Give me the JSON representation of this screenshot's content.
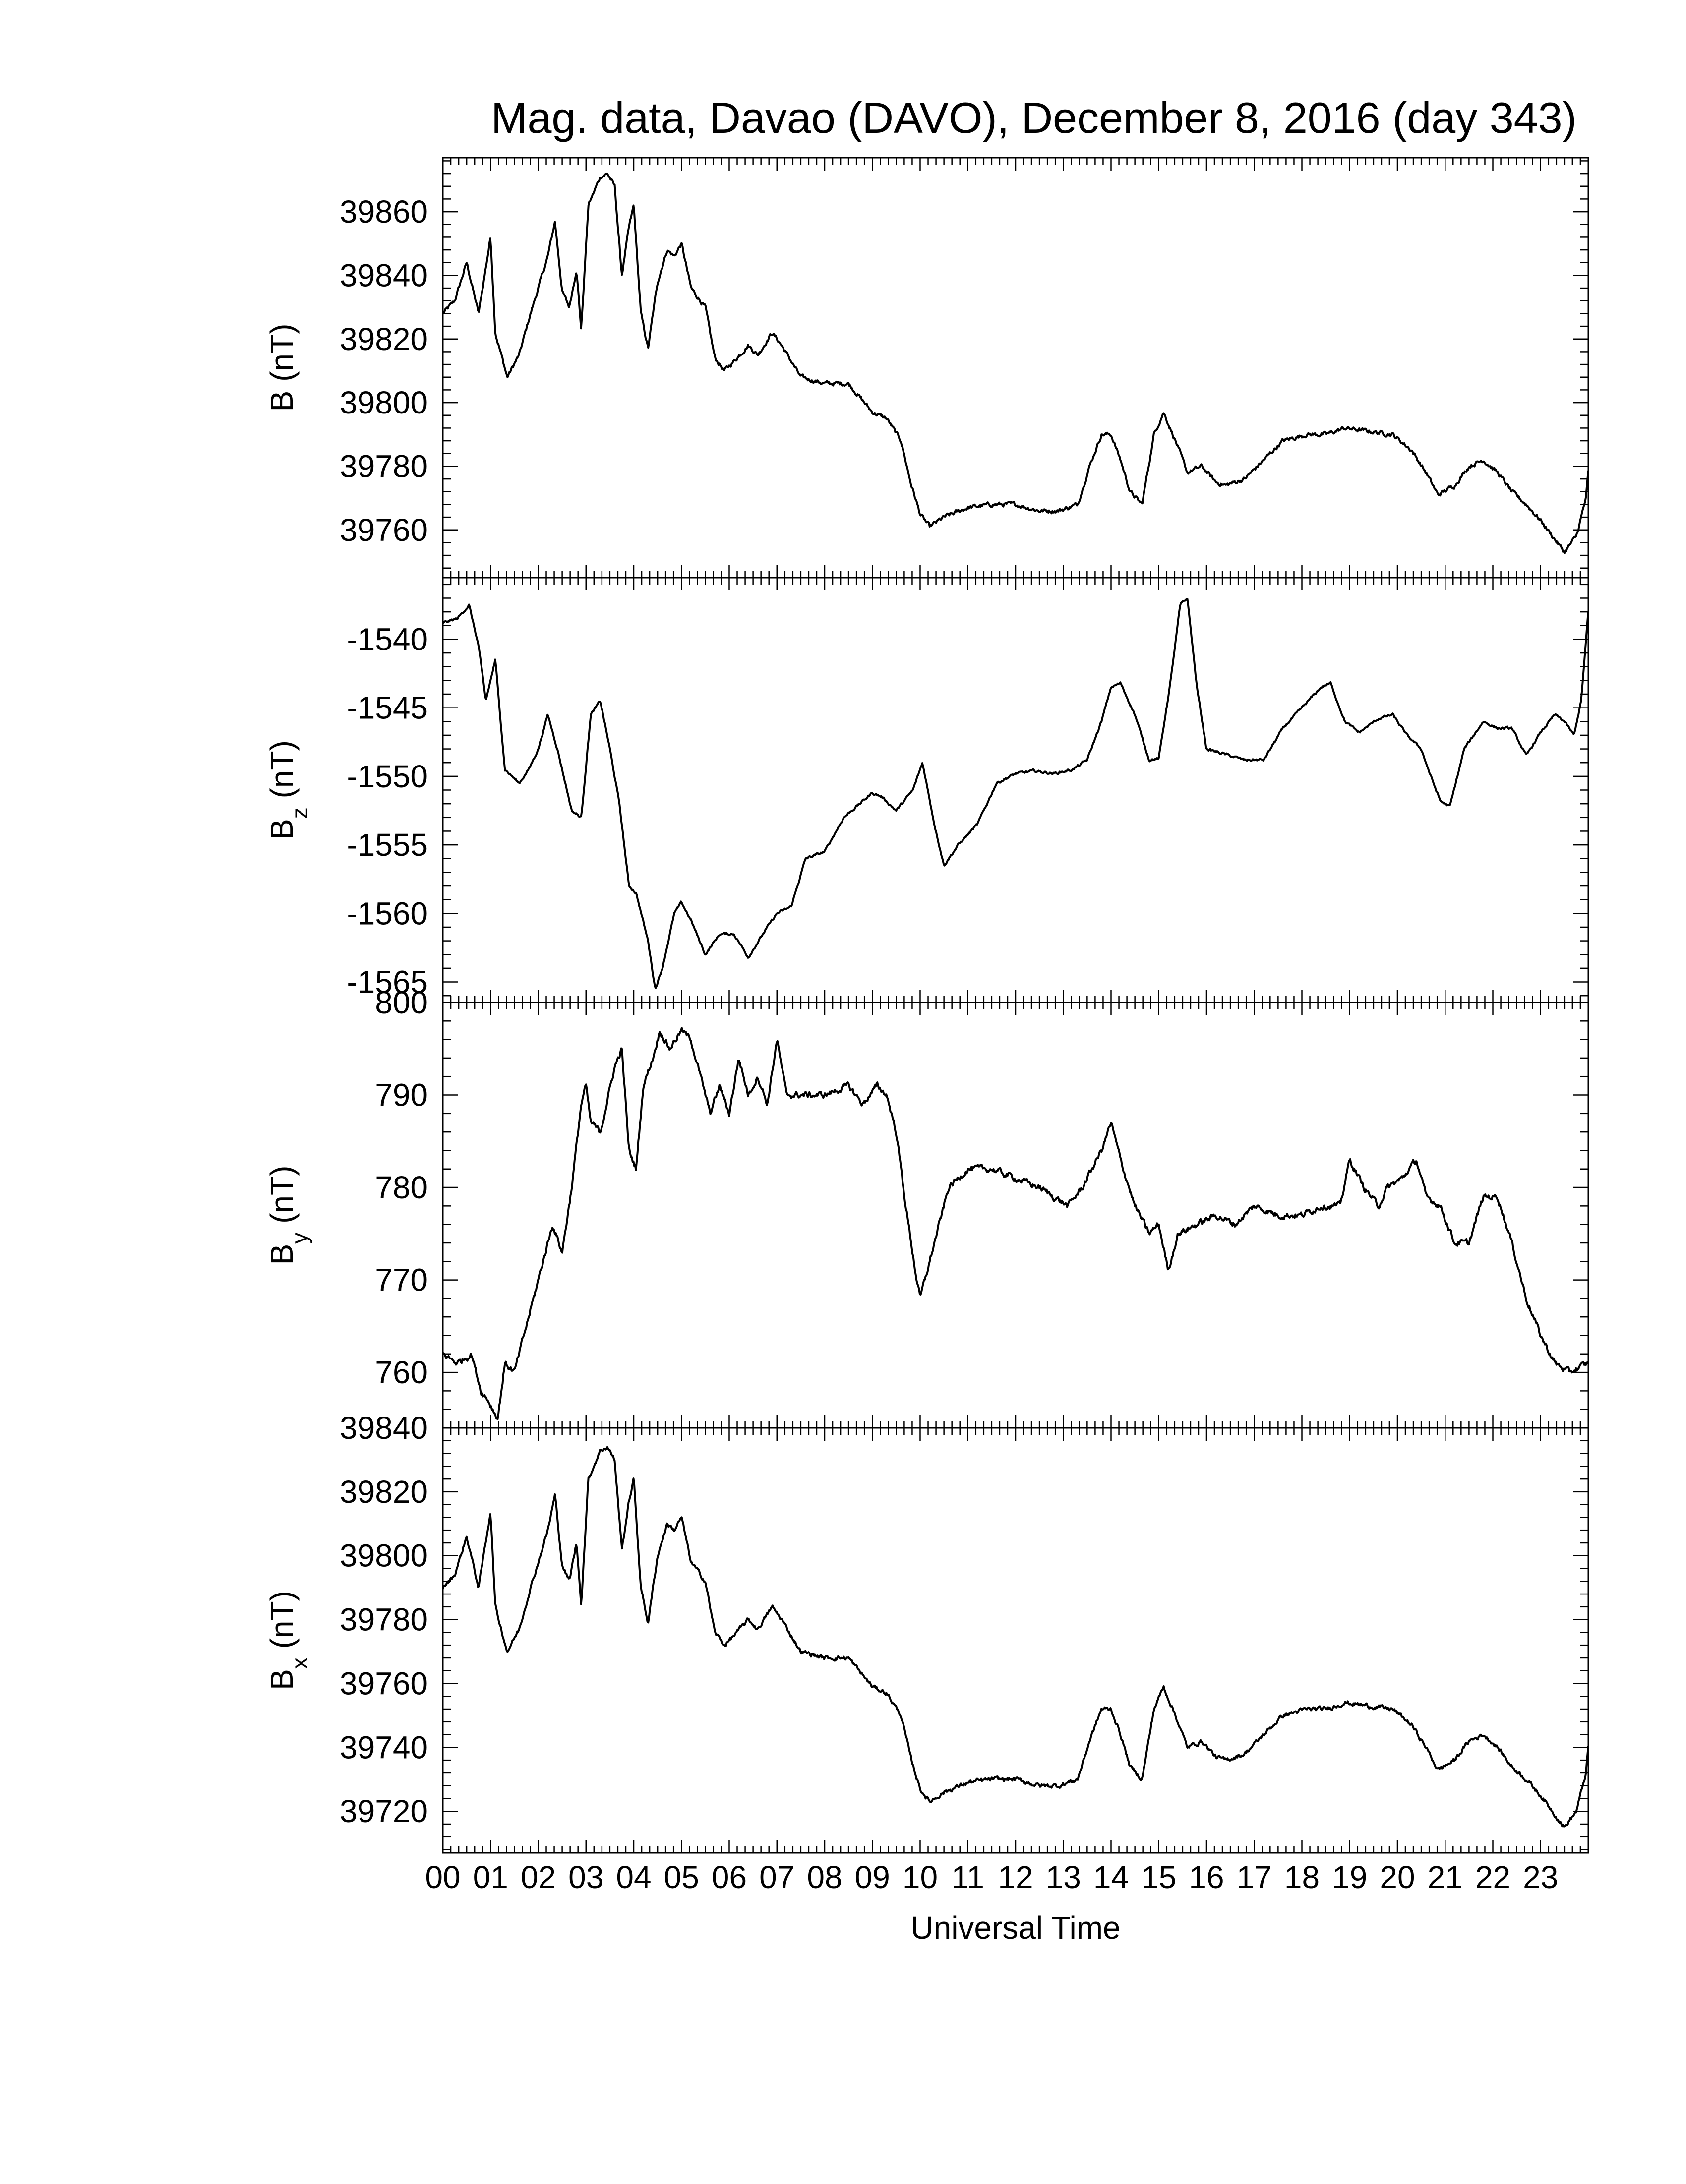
{
  "chart_data": {
    "type": "line",
    "title": "Mag. data, Davao (DAVO), December 8, 2016 (day 343)",
    "xlabel": "Universal Time",
    "x_unit": "hours UT",
    "xlim": [
      0,
      24
    ],
    "x_tick_labels": [
      "00",
      "01",
      "02",
      "03",
      "04",
      "05",
      "06",
      "07",
      "08",
      "09",
      "10",
      "11",
      "12",
      "13",
      "14",
      "15",
      "16",
      "17",
      "18",
      "19",
      "20",
      "21",
      "22",
      "23"
    ],
    "line_color": "#000000",
    "grid": false,
    "panels": [
      {
        "id": "B",
        "ylabel": "B (nT)",
        "ylabel_main": "B",
        "ylabel_sub": "",
        "ylabel_unit": " (nT)",
        "ylim": [
          39745,
          39877
        ],
        "yticks": [
          39760,
          39780,
          39800,
          39820,
          39840,
          39860
        ],
        "noise": 0.9,
        "x": [
          0,
          0.25,
          0.5,
          0.75,
          1.0,
          1.1,
          1.35,
          1.6,
          1.8,
          2.0,
          2.2,
          2.35,
          2.5,
          2.65,
          2.8,
          2.9,
          3.05,
          3.3,
          3.45,
          3.6,
          3.75,
          3.9,
          4.0,
          4.15,
          4.3,
          4.5,
          4.7,
          4.85,
          5.0,
          5.2,
          5.5,
          5.7,
          5.9,
          6.1,
          6.4,
          6.6,
          6.9,
          7.1,
          7.5,
          8.0,
          8.5,
          9.0,
          9.3,
          9.6,
          9.8,
          10.0,
          10.2,
          10.5,
          11.0,
          11.5,
          12.0,
          12.5,
          12.9,
          13.3,
          13.55,
          13.8,
          14.0,
          14.2,
          14.4,
          14.65,
          14.9,
          15.1,
          15.35,
          15.6,
          15.9,
          16.2,
          16.4,
          16.8,
          17.2,
          17.6,
          18.1,
          18.5,
          18.9,
          19.4,
          19.9,
          20.3,
          20.6,
          20.85,
          21.2,
          21.5,
          21.8,
          22.1,
          22.4,
          22.7,
          23.0,
          23.25,
          23.5,
          23.75,
          23.95,
          24.0
        ],
        "y": [
          39828,
          39832,
          39844,
          39828,
          39852,
          39822,
          39808,
          39815,
          39826,
          39836,
          39846,
          39857,
          39835,
          39830,
          39842,
          39823,
          39862,
          39871,
          39872,
          39868,
          39840,
          39855,
          39862,
          39828,
          39817,
          39838,
          39848,
          39846,
          39850,
          39836,
          39830,
          39814,
          39810,
          39813,
          39818,
          39815,
          39822,
          39818,
          39808,
          39806,
          39806,
          39797,
          39795,
          39788,
          39775,
          39765,
          39761,
          39764,
          39767,
          39768,
          39768,
          39766,
          39766,
          39768,
          39780,
          39790,
          39790,
          39782,
          39772,
          39768,
          39790,
          39797,
          39788,
          39778,
          39780,
          39775,
          39774,
          39776,
          39782,
          39788,
          39790,
          39790,
          39792,
          39791,
          39790,
          39785,
          39778,
          39771,
          39774,
          39780,
          39782,
          39778,
          39772,
          39768,
          39763,
          39758,
          39753,
          39758,
          39770,
          39778
        ]
      },
      {
        "id": "Bz",
        "ylabel": "Bz (nT)",
        "ylabel_main": "B",
        "ylabel_sub": "z",
        "ylabel_unit": " (nT)",
        "ylim": [
          -1566.5,
          -1535.5
        ],
        "yticks": [
          -1565,
          -1560,
          -1555,
          -1550,
          -1545,
          -1540
        ],
        "noise": 0.12,
        "x": [
          0,
          0.3,
          0.55,
          0.75,
          0.9,
          1.1,
          1.3,
          1.6,
          1.8,
          2.0,
          2.2,
          2.4,
          2.7,
          2.9,
          3.1,
          3.3,
          3.5,
          3.7,
          3.9,
          4.05,
          4.3,
          4.45,
          4.6,
          4.85,
          5.0,
          5.2,
          5.5,
          5.8,
          6.1,
          6.4,
          6.8,
          7.0,
          7.3,
          7.6,
          8.0,
          8.4,
          8.8,
          9.0,
          9.2,
          9.5,
          9.85,
          10.05,
          10.3,
          10.5,
          10.8,
          11.2,
          11.6,
          12.0,
          12.4,
          12.8,
          13.2,
          13.5,
          13.8,
          14.0,
          14.2,
          14.5,
          14.8,
          15.0,
          15.25,
          15.45,
          15.6,
          15.8,
          16.0,
          16.3,
          16.8,
          17.2,
          17.6,
          18.0,
          18.4,
          18.6,
          18.9,
          19.2,
          19.6,
          19.9,
          20.2,
          20.5,
          20.7,
          20.9,
          21.1,
          21.4,
          21.8,
          22.1,
          22.4,
          22.7,
          23.0,
          23.3,
          23.5,
          23.7,
          23.85,
          24.0
        ],
        "y": [
          -1538.8,
          -1538.5,
          -1537.5,
          -1540.5,
          -1544.5,
          -1541.5,
          -1549.5,
          -1550.5,
          -1549.5,
          -1548,
          -1545.5,
          -1548,
          -1552.5,
          -1553,
          -1545.5,
          -1544.5,
          -1548,
          -1552,
          -1558,
          -1558.5,
          -1562,
          -1565.5,
          -1564,
          -1560,
          -1559.2,
          -1560.5,
          -1563,
          -1561.5,
          -1561.5,
          -1563.2,
          -1561,
          -1560,
          -1559.5,
          -1556,
          -1555.5,
          -1553,
          -1551.8,
          -1551.2,
          -1551.5,
          -1552.5,
          -1551,
          -1549,
          -1553.5,
          -1556.5,
          -1555,
          -1553.5,
          -1550.5,
          -1549.8,
          -1549.6,
          -1549.8,
          -1549.5,
          -1548.8,
          -1546,
          -1543.5,
          -1543.2,
          -1545.5,
          -1548.8,
          -1548.7,
          -1543,
          -1537.5,
          -1537,
          -1543.5,
          -1548,
          -1548.3,
          -1548.8,
          -1548.8,
          -1546.5,
          -1545,
          -1543.5,
          -1543.2,
          -1546,
          -1546.8,
          -1545.8,
          -1545.5,
          -1547,
          -1548,
          -1550,
          -1551.8,
          -1552.2,
          -1548,
          -1546,
          -1546.5,
          -1546.5,
          -1548.5,
          -1546.8,
          -1545.5,
          -1546,
          -1547,
          -1544.5,
          -1538
        ]
      },
      {
        "id": "By",
        "ylabel": "By (nT)",
        "ylabel_main": "B",
        "ylabel_sub": "y",
        "ylabel_unit": " (nT)",
        "ylim": [
          754,
          800
        ],
        "yticks": [
          760,
          770,
          780,
          790,
          800
        ],
        "noise": 0.45,
        "x": [
          0,
          0.3,
          0.6,
          0.8,
          0.95,
          1.15,
          1.3,
          1.5,
          1.7,
          2.0,
          2.3,
          2.5,
          2.7,
          2.9,
          3.0,
          3.1,
          3.3,
          3.6,
          3.75,
          3.9,
          4.05,
          4.2,
          4.4,
          4.55,
          4.75,
          5.0,
          5.2,
          5.4,
          5.6,
          5.8,
          6.0,
          6.2,
          6.4,
          6.6,
          6.8,
          7.0,
          7.2,
          7.5,
          8.0,
          8.5,
          8.8,
          9.1,
          9.3,
          9.5,
          9.7,
          9.9,
          10.0,
          10.3,
          10.6,
          11.0,
          11.5,
          12.0,
          12.5,
          12.8,
          13.1,
          13.4,
          13.6,
          13.8,
          14.0,
          14.2,
          14.5,
          14.8,
          15.0,
          15.2,
          15.4,
          15.8,
          16.2,
          16.6,
          17.0,
          17.5,
          18.0,
          18.4,
          18.8,
          19.0,
          19.3,
          19.6,
          19.8,
          20.1,
          20.4,
          20.6,
          20.9,
          21.2,
          21.5,
          21.8,
          22.1,
          22.4,
          22.7,
          23.0,
          23.3,
          23.6,
          24.0
        ],
        "y": [
          762,
          761,
          762,
          758,
          757,
          755,
          761,
          760,
          764,
          770,
          776,
          773,
          780,
          789,
          791,
          787,
          786,
          793,
          795,
          784,
          782,
          791,
          794,
          797,
          795,
          797,
          796,
          792,
          788,
          791,
          788,
          794,
          790,
          792,
          789,
          796,
          790,
          790,
          790,
          791,
          789,
          791,
          790,
          786,
          778,
          771,
          768,
          774,
          780,
          782,
          782,
          781,
          780,
          779,
          778,
          780,
          782,
          784,
          787,
          783,
          778,
          775,
          776,
          771,
          775,
          776,
          777,
          776,
          778,
          777,
          777,
          778,
          778,
          783,
          780,
          778,
          780,
          781,
          783,
          779,
          778,
          774,
          774,
          779,
          779,
          774,
          768,
          764,
          761,
          760,
          761
        ]
      },
      {
        "id": "Bx",
        "ylabel": "Bx (nT)",
        "ylabel_main": "B",
        "ylabel_sub": "x",
        "ylabel_unit": " (nT)",
        "ylim": [
          39707,
          39840
        ],
        "yticks": [
          39720,
          39740,
          39760,
          39780,
          39800,
          39820,
          39840
        ],
        "noise": 0.9,
        "x": [
          0,
          0.25,
          0.5,
          0.75,
          1.0,
          1.1,
          1.35,
          1.6,
          1.8,
          2.0,
          2.2,
          2.35,
          2.5,
          2.65,
          2.8,
          2.9,
          3.05,
          3.3,
          3.45,
          3.6,
          3.75,
          3.9,
          4.0,
          4.15,
          4.3,
          4.5,
          4.7,
          4.85,
          5.0,
          5.2,
          5.5,
          5.7,
          5.9,
          6.1,
          6.4,
          6.6,
          6.9,
          7.1,
          7.5,
          8.0,
          8.5,
          9.0,
          9.3,
          9.6,
          9.8,
          10.0,
          10.2,
          10.5,
          11.0,
          11.5,
          12.0,
          12.5,
          12.9,
          13.3,
          13.55,
          13.8,
          14.0,
          14.2,
          14.4,
          14.65,
          14.9,
          15.1,
          15.35,
          15.6,
          15.9,
          16.2,
          16.4,
          16.8,
          17.2,
          17.6,
          18.1,
          18.5,
          18.9,
          19.4,
          19.9,
          20.3,
          20.6,
          20.85,
          21.2,
          21.5,
          21.8,
          22.1,
          22.4,
          22.7,
          23.0,
          23.25,
          23.5,
          23.75,
          23.95,
          24.0
        ],
        "y": [
          39790,
          39794,
          39806,
          39790,
          39814,
          39784,
          39770,
          39777,
          39788,
          39798,
          39808,
          39819,
          39797,
          39792,
          39804,
          39785,
          39824,
          39833,
          39834,
          39830,
          39802,
          39817,
          39824,
          39790,
          39779,
          39800,
          39810,
          39808,
          39812,
          39798,
          39792,
          39776,
          39772,
          39775,
          39780,
          39777,
          39784,
          39780,
          39770,
          39768,
          39768,
          39759,
          39757,
          39750,
          39737,
          39727,
          39723,
          39726,
          39729,
          39730,
          39730,
          39728,
          39728,
          39730,
          39742,
          39752,
          39752,
          39744,
          39734,
          39730,
          39752,
          39759,
          39750,
          39740,
          39742,
          39737,
          39736,
          39738,
          39744,
          39750,
          39752,
          39752,
          39754,
          39753,
          39752,
          39747,
          39740,
          39733,
          39736,
          39742,
          39744,
          39740,
          39734,
          39730,
          39725,
          39720,
          39715,
          39720,
          39732,
          39740
        ]
      }
    ]
  }
}
